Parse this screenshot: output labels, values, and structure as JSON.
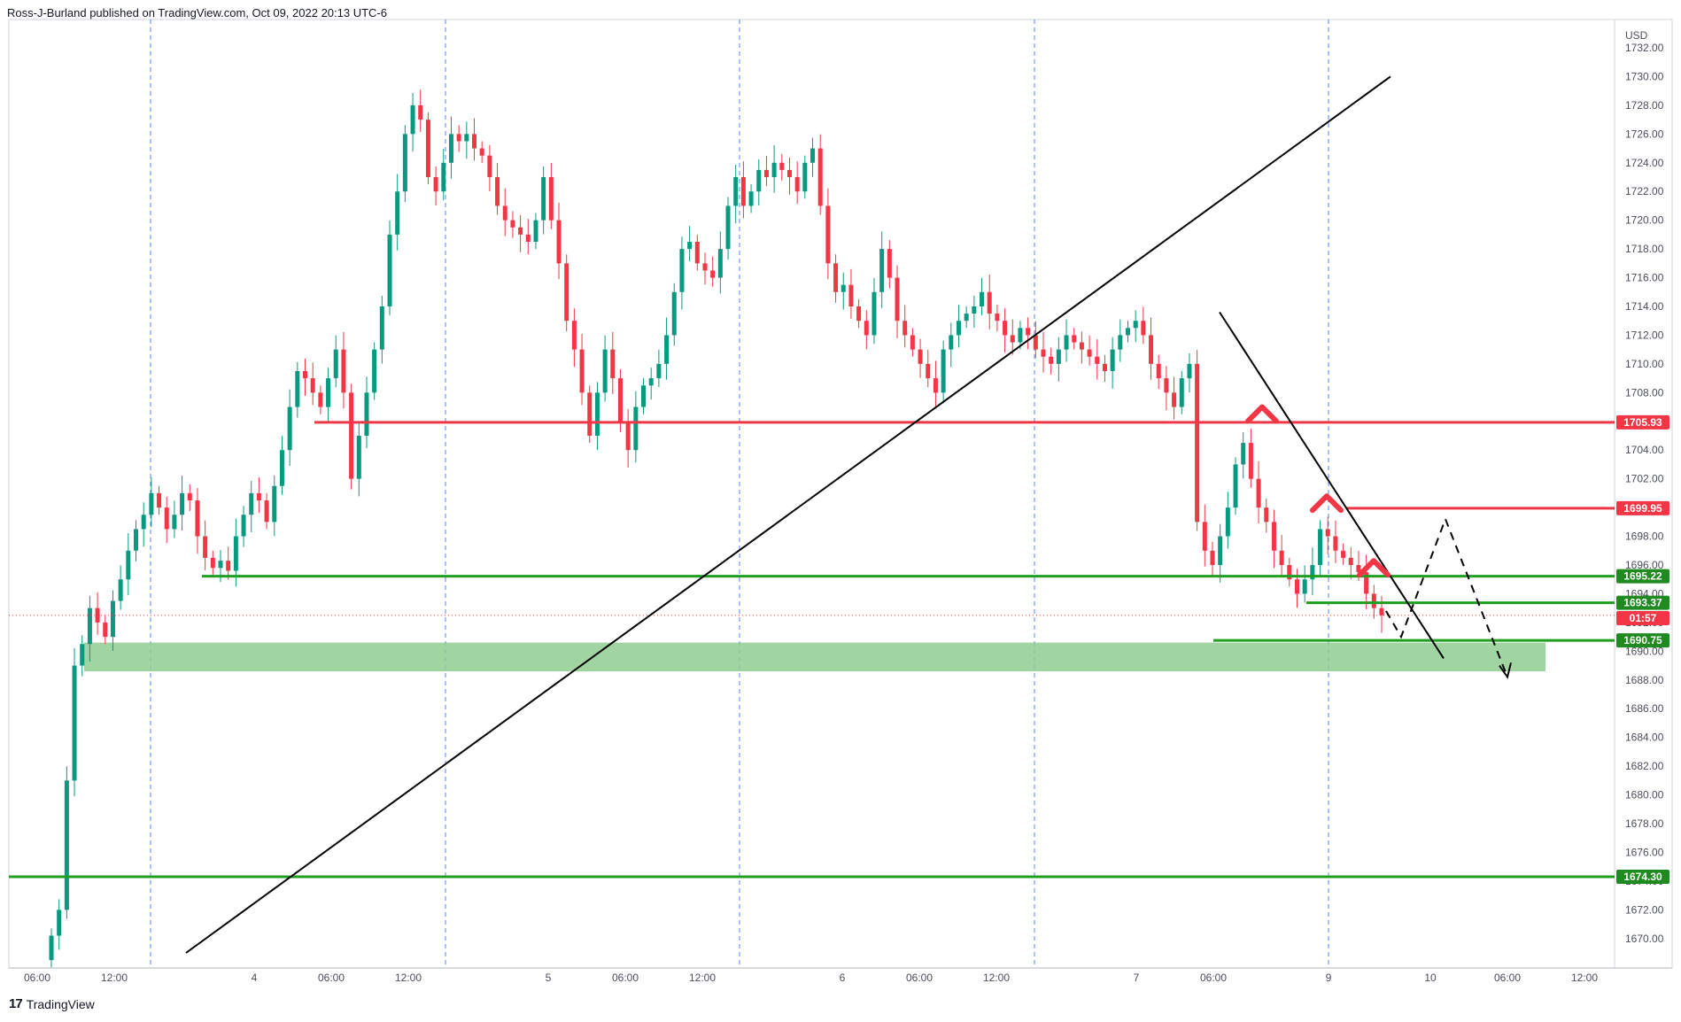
{
  "header": {
    "published": "Ross-J-Burland published on TradingView.com, Oct 09, 2022 20:13 UTC-6"
  },
  "footer": {
    "brand": "TradingView",
    "logo_mark": "17"
  },
  "chart_data": {
    "type": "candlestick",
    "title": "",
    "currency": "USD",
    "ylim": [
      1669,
      1732
    ],
    "y_ticks": [
      1670,
      1672,
      1674,
      1676,
      1678,
      1680,
      1682,
      1684,
      1686,
      1688,
      1690,
      1692,
      1694,
      1696,
      1698,
      1700,
      1702,
      1704,
      1706,
      1708,
      1710,
      1712,
      1714,
      1716,
      1718,
      1720,
      1722,
      1724,
      1726,
      1728,
      1730,
      1732
    ],
    "x_ticks": [
      "06:00",
      "12:00",
      "4",
      "06:00",
      "12:00",
      "5",
      "06:00",
      "12:00",
      "6",
      "06:00",
      "12:00",
      "7",
      "06:00",
      "9",
      "10",
      "06:00",
      "12:00"
    ],
    "price_labels": [
      {
        "label": "1705.93",
        "value": 1705.93,
        "color": "#f23645"
      },
      {
        "label": "1699.95",
        "value": 1699.95,
        "color": "#f23645"
      },
      {
        "label": "1695.22",
        "value": 1695.22,
        "color": "#1f8a1f"
      },
      {
        "label": "1693.37",
        "value": 1693.37,
        "color": "#1f8a1f"
      },
      {
        "label": "01:57",
        "value": 1692.3,
        "color": "#f23645"
      },
      {
        "label": "1690.75",
        "value": 1690.75,
        "color": "#1f8a1f"
      },
      {
        "label": "1674.30",
        "value": 1674.3,
        "color": "#1f8a1f"
      }
    ],
    "horizontal_levels": [
      {
        "value": 1705.93,
        "color": "#f23645"
      },
      {
        "value": 1699.95,
        "color": "#f23645"
      },
      {
        "value": 1695.22,
        "color": "#1f9e1f"
      },
      {
        "value": 1693.37,
        "color": "#1f9e1f"
      },
      {
        "value": 1690.75,
        "color": "#1f9e1f"
      },
      {
        "value": 1674.3,
        "color": "#1f9e1f"
      }
    ],
    "support_zone": {
      "from": 1688.6,
      "to": 1690.6,
      "color": "#8fcc8f"
    },
    "current_price": 1692.5,
    "series": [
      {
        "name": "",
        "close": [
          1670.2,
          1672.0,
          1681.0,
          1689.0,
          1690.5,
          1693.0,
          1692.0,
          1691.0,
          1693.5,
          1695.0,
          1697.0,
          1698.5,
          1699.5,
          1701.0,
          1700.0,
          1698.5,
          1699.5,
          1701.0,
          1700.5,
          1698.0,
          1696.5,
          1695.8,
          1696.3,
          1695.6,
          1698.0,
          1699.5,
          1701.0,
          1700.5,
          1699.0,
          1701.5,
          1704.0,
          1707.0,
          1709.5,
          1709.0,
          1708.0,
          1707.0,
          1709.0,
          1711.0,
          1708.0,
          1702.0,
          1705.0,
          1708.0,
          1711.0,
          1714.0,
          1719.0,
          1722.0,
          1726.0,
          1728.0,
          1727.0,
          1723.0,
          1722.0,
          1724.0,
          1726.0,
          1725.5,
          1726.0,
          1725.0,
          1724.5,
          1723.0,
          1721.0,
          1720.0,
          1719.5,
          1719.0,
          1718.5,
          1720.0,
          1723.0,
          1720.0,
          1717.0,
          1713.0,
          1711.0,
          1708.0,
          1705.0,
          1708.0,
          1711.0,
          1709.0,
          1706.0,
          1704.0,
          1707.0,
          1708.5,
          1709.0,
          1710.0,
          1712.0,
          1715.0,
          1718.0,
          1718.5,
          1717.0,
          1716.5,
          1716.0,
          1718.0,
          1721.0,
          1723.0,
          1721.0,
          1722.0,
          1723.5,
          1723.0,
          1724.0,
          1723.5,
          1723.0,
          1722.0,
          1724.0,
          1725.0,
          1721.0,
          1717.0,
          1715.0,
          1715.5,
          1714.0,
          1713.0,
          1712.0,
          1715.0,
          1718.0,
          1716.0,
          1713.0,
          1712.0,
          1711.0,
          1710.0,
          1709.0,
          1708.0,
          1711.0,
          1712.0,
          1713.0,
          1713.5,
          1714.0,
          1715.0,
          1713.5,
          1713.0,
          1712.0,
          1711.5,
          1712.5,
          1712.0,
          1711.0,
          1710.5,
          1710.0,
          1711.0,
          1712.0,
          1711.5,
          1711.0,
          1710.5,
          1710.0,
          1709.5,
          1711.0,
          1712.0,
          1712.5,
          1713.0,
          1712.0,
          1710.0,
          1709.0,
          1708.0,
          1707.0,
          1709.0,
          1710.0,
          1699.0,
          1697.0,
          1696.0,
          1698.0,
          1700.0,
          1703.0,
          1704.5,
          1702.0,
          1700.0,
          1699.0,
          1697.0,
          1696.0,
          1695.0,
          1694.0,
          1695.0,
          1696.0,
          1698.5,
          1698.0,
          1697.0,
          1696.5,
          1696.0,
          1695.5,
          1694.0,
          1693.0,
          1692.5
        ]
      }
    ],
    "annotations": {
      "rising_trendline": "black",
      "falling_trendline": "black",
      "lower_high_markers": 3,
      "projection": "dashed zig-zag path"
    }
  }
}
